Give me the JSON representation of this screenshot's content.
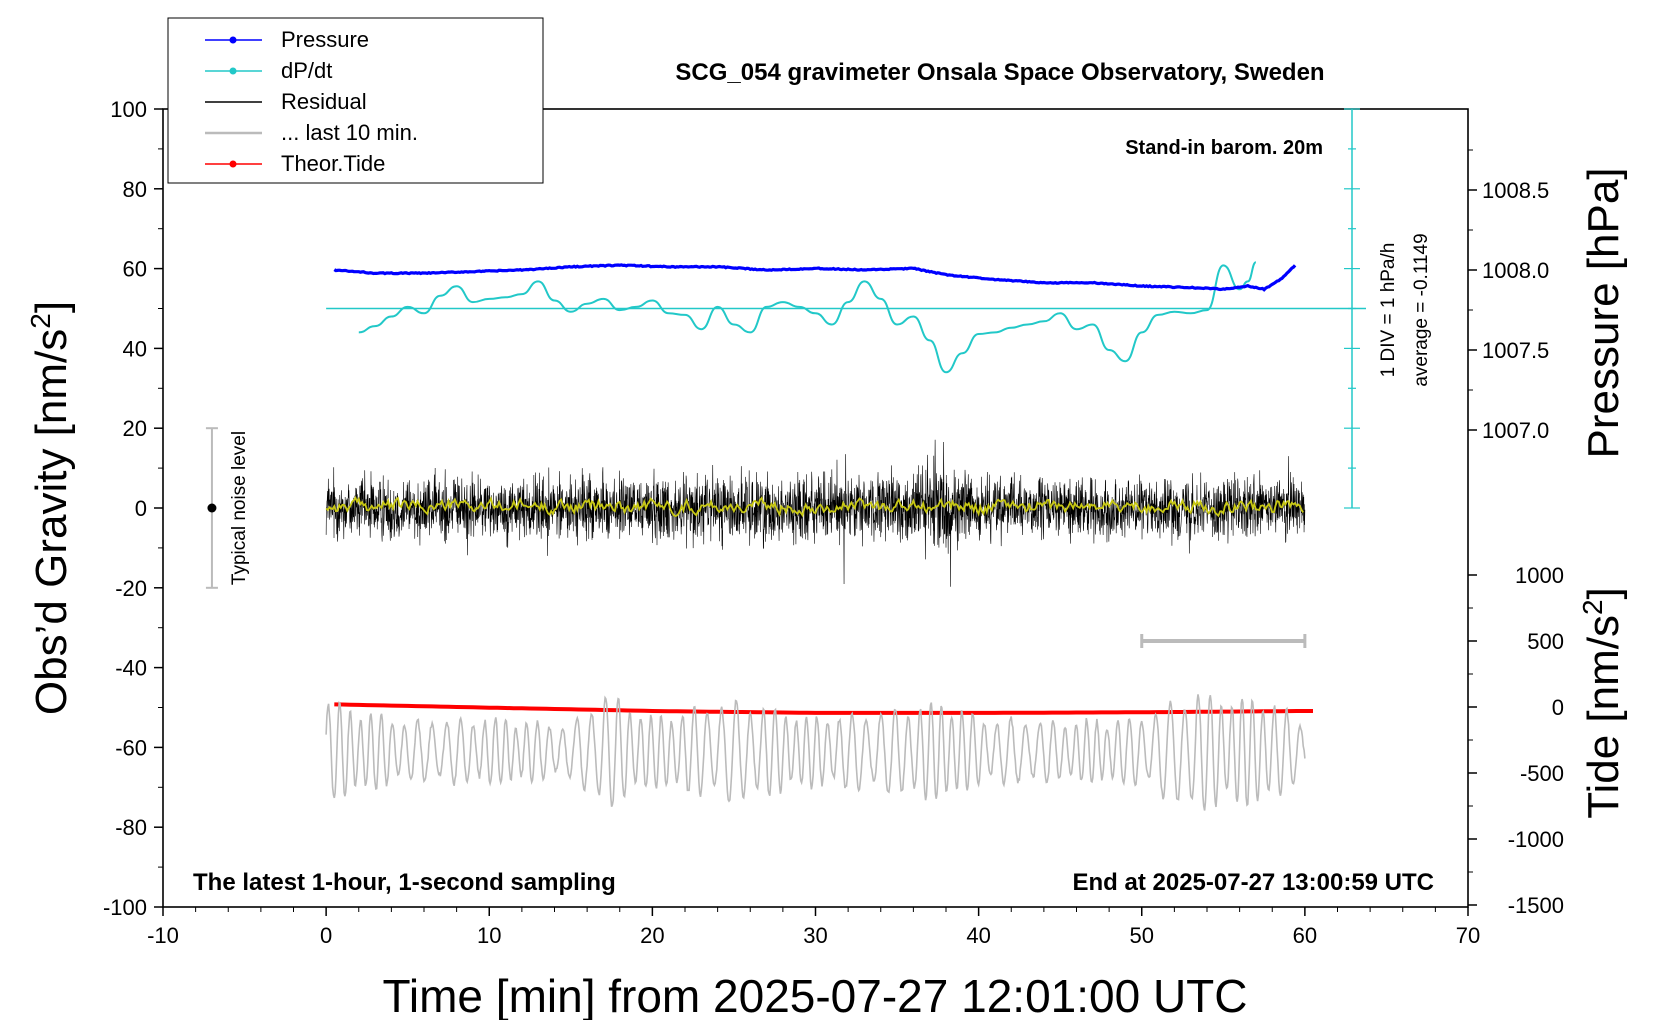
{
  "chart_data": {
    "type": "line",
    "title": "SCG_054 gravimeter Onsala Space Observatory, Sweden",
    "xlabel": "Time [min] from 2025-07-27 12:01:00 UTC",
    "xlim": [
      -10,
      70
    ],
    "xticks": [
      -10,
      0,
      10,
      20,
      30,
      40,
      50,
      60,
      70
    ],
    "left_axis": {
      "label_main": "Obs’d Gravity [nm/s",
      "label_sup": "2",
      "label_end": "]",
      "ylim": [
        -100,
        100
      ],
      "ticks": [
        -100,
        -80,
        -60,
        -40,
        -20,
        0,
        20,
        40,
        60,
        80,
        100
      ]
    },
    "pressure_axis": {
      "label": "Pressure [hPa]",
      "ticks": [
        "1007.0",
        "1007.5",
        "1008.0",
        "1008.5"
      ],
      "tick_values": [
        1007.0,
        1007.5,
        1008.0,
        1008.5
      ],
      "range": [
        1006.5,
        1009.0
      ]
    },
    "tide_axis": {
      "label_main": "Tide [nm/s",
      "label_sup": "2",
      "label_end": "]",
      "ticks": [
        "1000",
        "500",
        "0",
        "-500",
        "-1000",
        "-1500"
      ],
      "tick_values": [
        1000,
        500,
        0,
        -500,
        -1000,
        -1500
      ]
    },
    "legend": {
      "position": "top-left",
      "items": [
        {
          "label": "Pressure",
          "color": "#0000ff",
          "marker": true
        },
        {
          "label": "dP/dt",
          "color": "#22c8c8",
          "marker": true
        },
        {
          "label": "Residual",
          "color": "#000000",
          "marker": false
        },
        {
          "label": "... last 10 min.",
          "color": "#bbbbbb",
          "marker": false
        },
        {
          "label": "Theor.Tide",
          "color": "#ff0000",
          "marker": true
        }
      ]
    },
    "annotations": {
      "barom": "Stand-in barom. 20m",
      "div_note": "1 DIV = 1 hPa/h",
      "average_note": "average = -0.1149",
      "noise": "Typical noise level",
      "sampling": "The latest 1-hour, 1-second sampling",
      "end_time": "End at 2025-07-27 13:00:59 UTC"
    },
    "noise_bar": {
      "x": -7,
      "y_low": -20,
      "y_high": 20,
      "center": 0
    },
    "last10_bar": {
      "x_start": 50,
      "x_end": 60
    },
    "series": [
      {
        "name": "Pressure",
        "color": "#0000ff",
        "unit": "hPa",
        "x": [
          0.5,
          3,
          6,
          9,
          12,
          15,
          18,
          21,
          24,
          27,
          30,
          33,
          36,
          38,
          41,
          44,
          47,
          50,
          53,
          55,
          56.5,
          57.5,
          58.5,
          59.5
        ],
        "values": [
          1008.0,
          1007.98,
          1007.98,
          1007.99,
          1008.0,
          1008.02,
          1008.03,
          1008.02,
          1008.02,
          1008.0,
          1008.01,
          1008.0,
          1008.01,
          1007.97,
          1007.94,
          1007.92,
          1007.92,
          1007.9,
          1007.89,
          1007.88,
          1007.9,
          1007.88,
          1007.94,
          1008.04
        ]
      },
      {
        "name": "dP/dt",
        "color": "#22c8c8",
        "unit": "hPa/h (1 DIV = 1 hPa/h)",
        "x": [
          2,
          3,
          4,
          5,
          6,
          7,
          8,
          9,
          10,
          11,
          12,
          13,
          14,
          15,
          16,
          17,
          18,
          19,
          20,
          21,
          22,
          23,
          24,
          25,
          26,
          27,
          28,
          29,
          30,
          31,
          32,
          33,
          34,
          35,
          36,
          37,
          38,
          39,
          40,
          41,
          42,
          43,
          44,
          45,
          46,
          47,
          48,
          49,
          50,
          51,
          52,
          53,
          54,
          55,
          56,
          56.5,
          57
        ],
        "values": [
          -1.5,
          -1.1,
          -0.5,
          0.1,
          -0.3,
          0.8,
          1.4,
          0.4,
          0.6,
          0.7,
          0.9,
          1.7,
          0.5,
          -0.2,
          0.3,
          0.6,
          -0.1,
          0.1,
          0.5,
          -0.3,
          -0.4,
          -1.3,
          0.1,
          -1.0,
          -1.5,
          0.1,
          0.4,
          0.1,
          -0.3,
          -1.0,
          0.4,
          1.7,
          0.6,
          -1.0,
          -0.5,
          -2.0,
          -4.0,
          -2.8,
          -1.6,
          -1.5,
          -1.2,
          -1.0,
          -0.8,
          -0.3,
          -1.3,
          -1.0,
          -2.6,
          -3.3,
          -1.5,
          -0.4,
          -0.2,
          -0.3,
          -0.1,
          2.7,
          1.2,
          1.7,
          2.9
        ]
      },
      {
        "name": "Residual",
        "color": "#000000",
        "unit": "nm/s2",
        "x_range": [
          0,
          60
        ],
        "envelope_x": [
          0,
          5,
          10,
          15,
          20,
          25,
          30,
          35,
          38,
          40,
          45,
          50,
          55,
          60
        ],
        "envelope_amp": [
          11,
          12,
          11,
          12,
          12,
          12,
          12,
          13,
          19,
          12,
          10,
          10,
          11,
          11
        ]
      },
      {
        "name": "... last 10 min.",
        "color": "#bbbbbb",
        "unit": "nm/s2 (offset)",
        "x_range": [
          0,
          60
        ],
        "center": -61,
        "envelope_x": [
          0,
          5,
          10,
          15,
          17,
          20,
          25,
          30,
          35,
          38,
          40,
          45,
          50,
          53,
          55,
          58,
          60
        ],
        "envelope_amp": [
          12,
          7,
          8,
          6,
          14,
          8,
          12,
          8,
          10,
          12,
          8,
          7,
          8,
          14,
          13,
          12,
          6
        ]
      },
      {
        "name": "Theor.Tide",
        "color": "#ff0000",
        "unit": "nm/s2",
        "x": [
          0.5,
          10,
          20,
          30,
          40,
          50,
          60
        ],
        "values": [
          20,
          -5,
          -30,
          -45,
          -45,
          -40,
          -30
        ]
      },
      {
        "name": "Residual smoothed",
        "color": "#c8c814",
        "unit": "nm/s2",
        "x_range": [
          0,
          60
        ],
        "center": 0.5,
        "amp": 1.2
      }
    ]
  }
}
